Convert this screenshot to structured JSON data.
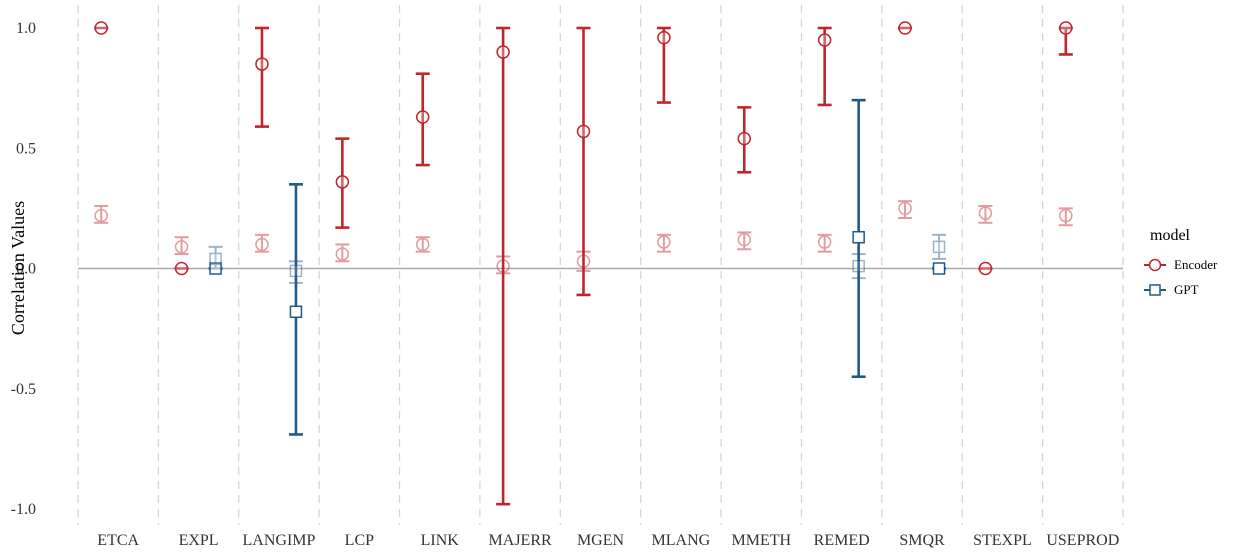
{
  "chart_data": {
    "type": "errorbar",
    "ylabel": "Correlation Values",
    "ylim": [
      -1.05,
      1.05
    ],
    "yticks": [
      -1.0,
      -0.5,
      0.0,
      0.5,
      1.0
    ],
    "ytick_labels": [
      "-1.0",
      "-0.5",
      "0.0",
      "0.5",
      "1.0"
    ],
    "categories": [
      "ETCA",
      "EXPL",
      "LANGIMP",
      "LCP",
      "LINK",
      "MAJERR",
      "MGEN",
      "MLANG",
      "MMETH",
      "REMED",
      "SMQR",
      "STEXPL",
      "USEPROD"
    ],
    "reference_line": 0.0,
    "grid": {
      "vertical_dashed": true,
      "horizontal": false
    },
    "legend": {
      "title": "model",
      "position": "right",
      "entries": [
        {
          "label": "Encoder",
          "marker": "circle",
          "color": "#c0252e"
        },
        {
          "label": "GPT",
          "marker": "square",
          "color": "#1f5a8a"
        }
      ]
    },
    "series": [
      {
        "name": "Encoder",
        "points": [
          {
            "category": "ETCA",
            "y": 1.0,
            "low": 1.0,
            "high": 1.0
          },
          {
            "category": "EXPL",
            "y": 0.0,
            "low": 0.0,
            "high": 0.0
          },
          {
            "category": "LANGIMP",
            "y": 0.85,
            "low": 0.59,
            "high": 1.0
          },
          {
            "category": "LCP",
            "y": 0.36,
            "low": 0.17,
            "high": 0.54
          },
          {
            "category": "LINK",
            "y": 0.63,
            "low": 0.43,
            "high": 0.81
          },
          {
            "category": "MAJERR",
            "y": 0.9,
            "low": -0.98,
            "high": 1.0
          },
          {
            "category": "MGEN",
            "y": 0.57,
            "low": -0.11,
            "high": 1.0
          },
          {
            "category": "MLANG",
            "y": 0.96,
            "low": 0.69,
            "high": 1.0
          },
          {
            "category": "MMETH",
            "y": 0.54,
            "low": 0.4,
            "high": 0.67
          },
          {
            "category": "REMED",
            "y": 0.95,
            "low": 0.68,
            "high": 1.0
          },
          {
            "category": "SMQR",
            "y": 1.0,
            "low": 1.0,
            "high": 1.0
          },
          {
            "category": "STEXPL",
            "y": 0.0,
            "low": 0.0,
            "high": 0.0
          },
          {
            "category": "USEPROD",
            "y": 1.0,
            "low": 0.89,
            "high": 1.0
          }
        ]
      },
      {
        "name": "GPT",
        "points": [
          {
            "category": "EXPL",
            "y": 0.0,
            "low": 0.0,
            "high": 0.0
          },
          {
            "category": "LANGIMP",
            "y": -0.18,
            "low": -0.69,
            "high": 0.35
          },
          {
            "category": "REMED",
            "y": 0.13,
            "low": -0.45,
            "high": 0.7
          },
          {
            "category": "SMQR",
            "y": 0.0,
            "low": 0.0,
            "high": 0.0
          }
        ]
      },
      {
        "name": "Encoder baseline",
        "faded": true,
        "points": [
          {
            "category": "ETCA",
            "y": 0.22,
            "low": 0.19,
            "high": 0.26
          },
          {
            "category": "EXPL",
            "y": 0.09,
            "low": 0.06,
            "high": 0.13
          },
          {
            "category": "LANGIMP",
            "y": 0.1,
            "low": 0.07,
            "high": 0.14
          },
          {
            "category": "LCP",
            "y": 0.06,
            "low": 0.03,
            "high": 0.1
          },
          {
            "category": "LINK",
            "y": 0.1,
            "low": 0.07,
            "high": 0.13
          },
          {
            "category": "MAJERR",
            "y": 0.01,
            "low": -0.02,
            "high": 0.05
          },
          {
            "category": "MGEN",
            "y": 0.03,
            "low": -0.01,
            "high": 0.07
          },
          {
            "category": "MLANG",
            "y": 0.11,
            "low": 0.07,
            "high": 0.14
          },
          {
            "category": "MMETH",
            "y": 0.12,
            "low": 0.08,
            "high": 0.15
          },
          {
            "category": "REMED",
            "y": 0.11,
            "low": 0.07,
            "high": 0.14
          },
          {
            "category": "SMQR",
            "y": 0.25,
            "low": 0.21,
            "high": 0.28
          },
          {
            "category": "STEXPL",
            "y": 0.23,
            "low": 0.19,
            "high": 0.26
          },
          {
            "category": "USEPROD",
            "y": 0.22,
            "low": 0.18,
            "high": 0.25
          }
        ]
      },
      {
        "name": "GPT baseline",
        "faded": true,
        "points": [
          {
            "category": "EXPL",
            "y": 0.04,
            "low": 0.0,
            "high": 0.09
          },
          {
            "category": "LANGIMP",
            "y": -0.01,
            "low": -0.06,
            "high": 0.03
          },
          {
            "category": "REMED",
            "y": 0.01,
            "low": -0.04,
            "high": 0.06
          },
          {
            "category": "SMQR",
            "y": 0.09,
            "low": 0.04,
            "high": 0.14
          }
        ]
      }
    ]
  },
  "colors": {
    "encoder": "#c0252e",
    "gpt": "#1f5a8a",
    "grid": "#d3d3d3",
    "zero_line": "#a9a9a9"
  }
}
